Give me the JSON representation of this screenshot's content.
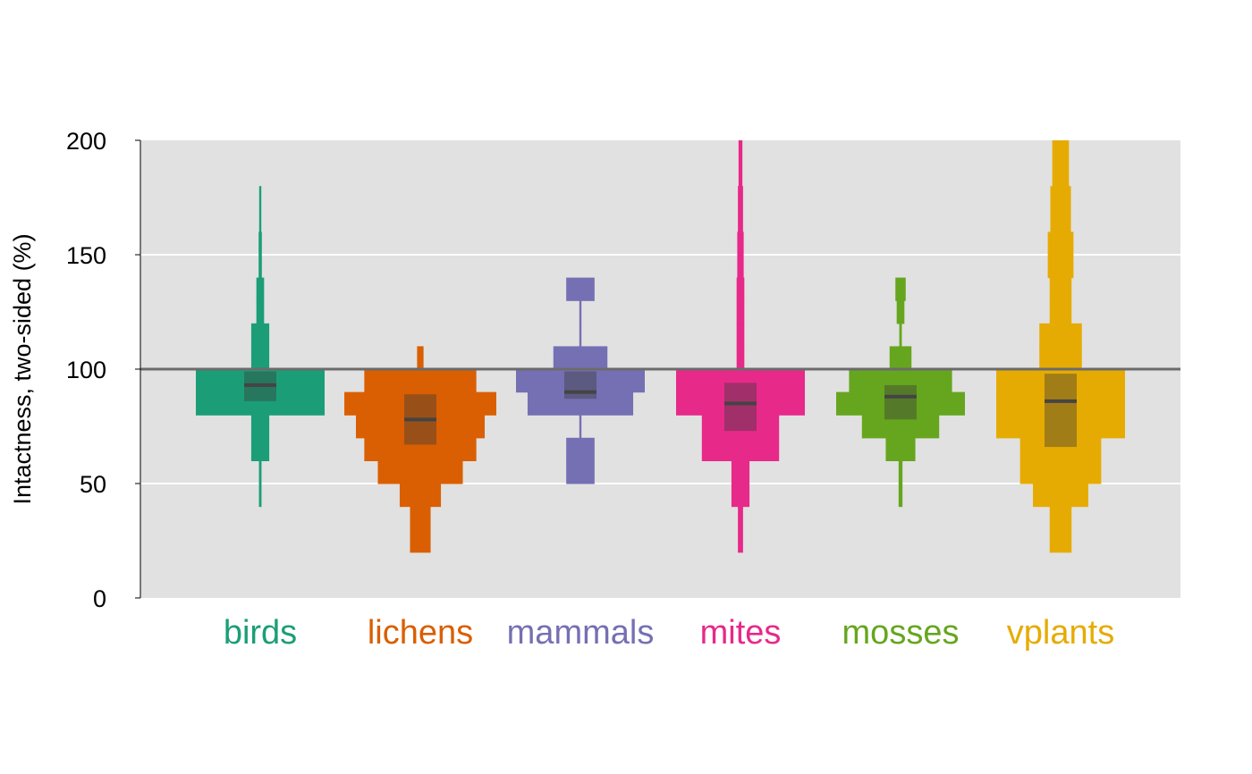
{
  "chart_data": {
    "type": "histogram-violin",
    "ylabel": "Intactness, two-sided (%)",
    "ylim": [
      0,
      200
    ],
    "yticks": [
      "0",
      "50",
      "100",
      "150",
      "200"
    ],
    "reference_line": 100,
    "bin_edges": [
      20,
      40,
      50,
      60,
      70,
      80,
      90,
      100,
      110,
      120,
      130,
      140,
      160,
      180,
      200
    ],
    "categories": [
      {
        "name": "birds",
        "color": "#1b9e77",
        "histogram": [
          0,
          0.02,
          0.02,
          0.14,
          0.14,
          1.0,
          1.0,
          0.14,
          0.14,
          0.06,
          0.06,
          0.025,
          0.015,
          0
        ],
        "box": [
          86,
          99
        ],
        "median": 93
      },
      {
        "name": "lichens",
        "color": "#d95f02",
        "histogram": [
          0.16,
          0.32,
          0.66,
          0.87,
          1.0,
          1.18,
          0.87,
          0.05,
          0,
          0,
          0,
          0,
          0,
          0
        ],
        "box": [
          67,
          89
        ],
        "median": 78
      },
      {
        "name": "mammals",
        "color": "#7570b3",
        "histogram": [
          0,
          0,
          0.22,
          0.22,
          0.01,
          0.82,
          1.0,
          0.42,
          0.01,
          0.01,
          0.22,
          0,
          0,
          0
        ],
        "box": [
          87,
          99
        ],
        "median": 90
      },
      {
        "name": "mites",
        "color": "#e7298a",
        "histogram": [
          0.04,
          0.14,
          0.14,
          0.6,
          0.6,
          1.0,
          1.0,
          0.06,
          0.06,
          0.06,
          0.06,
          0.05,
          0.04,
          0.03
        ],
        "box": [
          73,
          94
        ],
        "median": 85
      },
      {
        "name": "mosses",
        "color": "#66a61e",
        "histogram": [
          0,
          0.03,
          0.03,
          0.23,
          0.6,
          1.0,
          0.8,
          0.17,
          0.02,
          0.06,
          0.08,
          0,
          0,
          0
        ],
        "box": [
          78,
          93
        ],
        "median": 88
      },
      {
        "name": "vplants",
        "color": "#e6ab02",
        "histogram": [
          0.17,
          0.43,
          0.63,
          0.63,
          1.0,
          1.0,
          1.0,
          0.33,
          0.33,
          0.17,
          0.17,
          0.2,
          0.16,
          0.13
        ],
        "box": [
          66,
          98
        ],
        "median": 86
      }
    ],
    "grid": true,
    "legend": "none"
  }
}
